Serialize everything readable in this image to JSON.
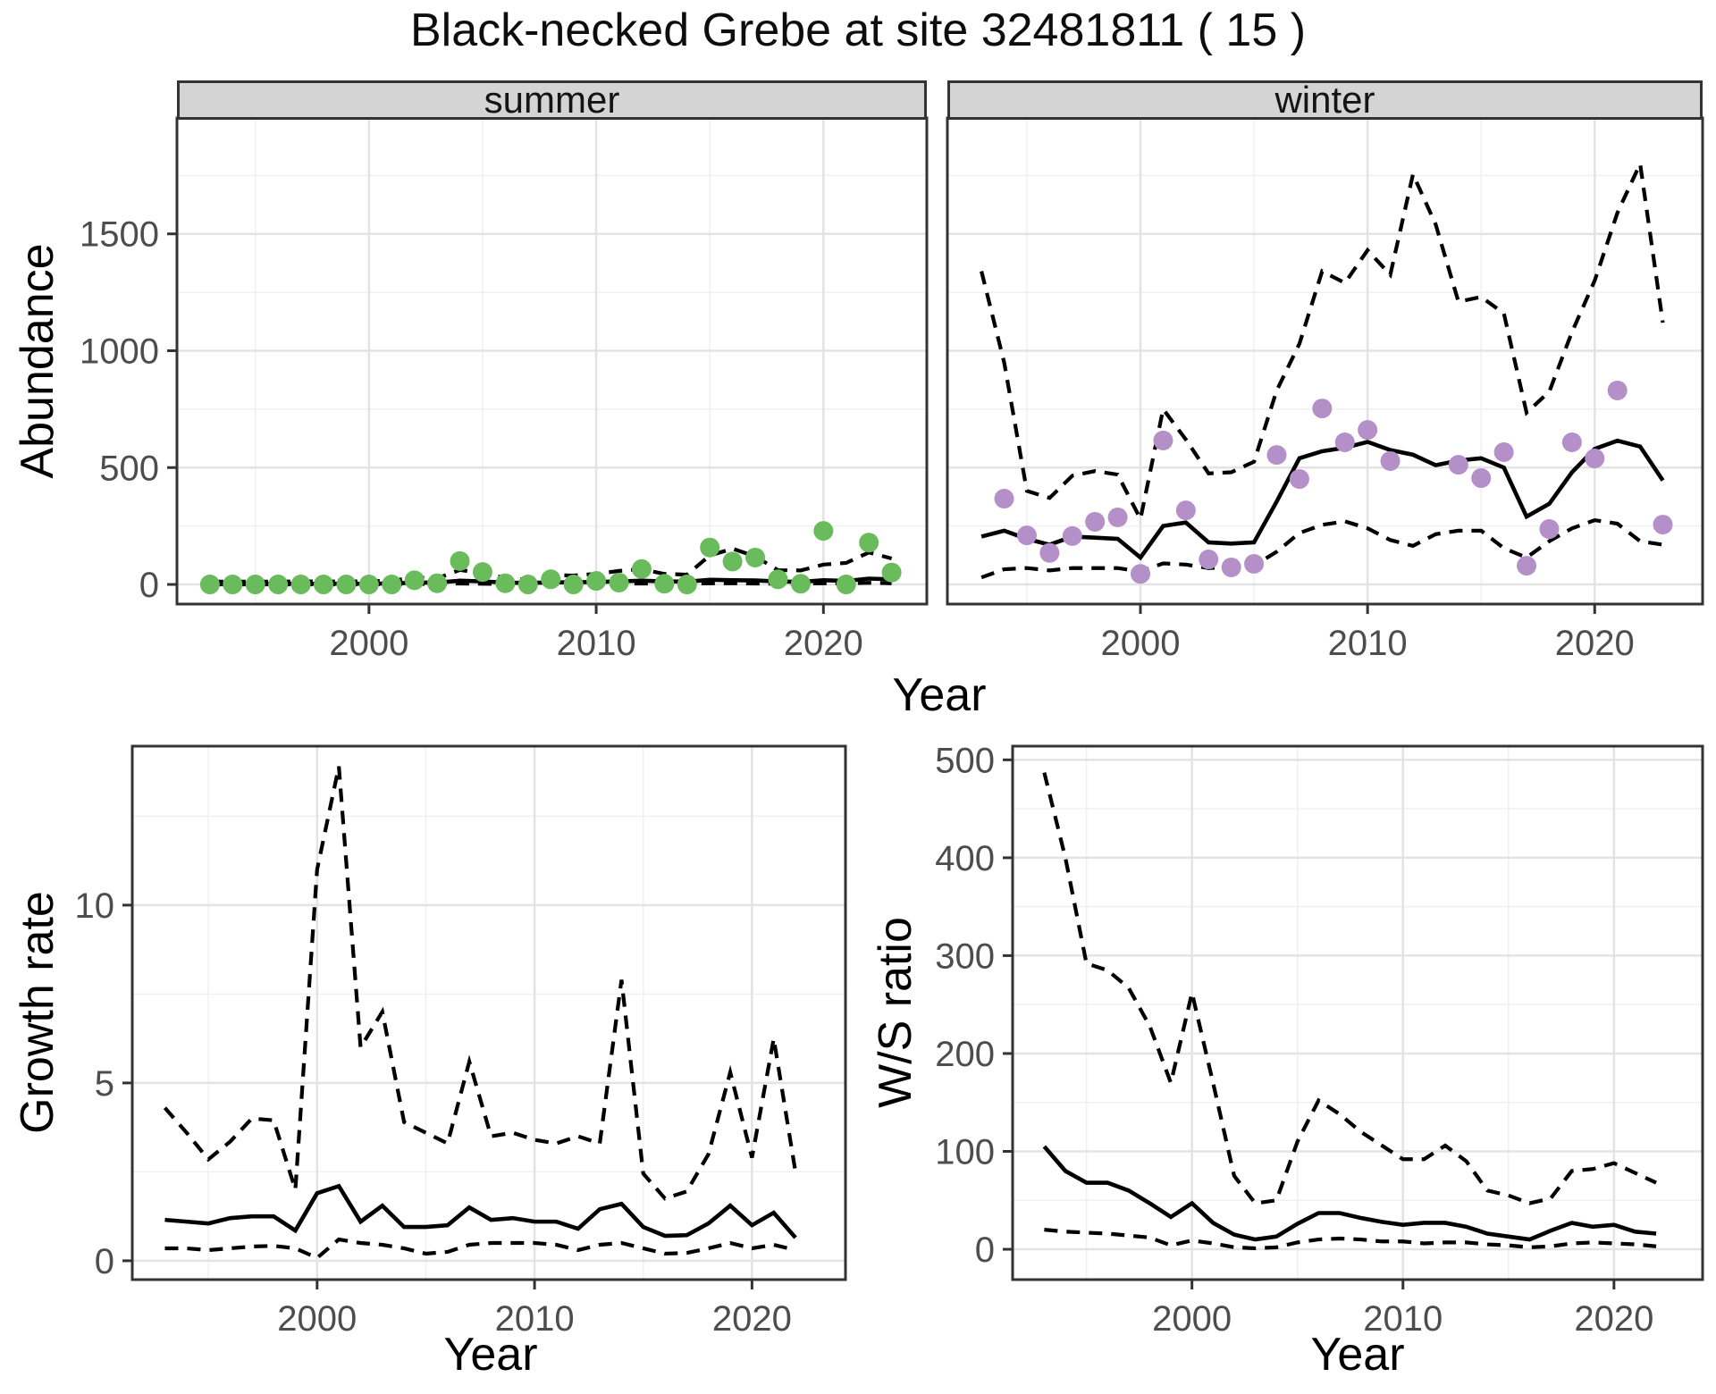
{
  "page": {
    "title": "Black-necked Grebe at site 32481811 ( 15 )"
  },
  "facets": {
    "summer_label": "summer",
    "winter_label": "winter"
  },
  "axes": {
    "abundance_label": "Abundance",
    "year_label_top": "Year",
    "growth_label": "Growth rate",
    "year_label_growth": "Year",
    "ws_label": "W/S ratio",
    "year_label_ws": "Year"
  },
  "colors": {
    "summer_point": "#6abb5b",
    "winter_point": "#b48fc8",
    "line": "#000000",
    "strip_bg": "#d4d4d4",
    "grid_major": "#e3e3e3",
    "grid_minor": "#f0f0f0",
    "panel_border": "#333333",
    "tick_label": "#4d4d4d"
  },
  "chart_data": [
    {
      "id": "summer",
      "type": "line",
      "facet_label": "summer",
      "xlabel": "Year",
      "ylabel": "Abundance",
      "xlim": [
        1991.55,
        2024.55
      ],
      "ylim": [
        -84,
        1996
      ],
      "xticks": [
        2000,
        2010,
        2020
      ],
      "xminor": [
        1995,
        2005,
        2015
      ],
      "yticks": [
        0,
        500,
        1000,
        1500
      ],
      "yminor": [
        250,
        750,
        1250,
        1750
      ],
      "grid": true,
      "legend": "none",
      "point_color": "#6abb5b",
      "x": [
        1993,
        1994,
        1995,
        1996,
        1997,
        1998,
        1999,
        2000,
        2001,
        2002,
        2003,
        2004,
        2005,
        2006,
        2007,
        2008,
        2009,
        2010,
        2011,
        2012,
        2013,
        2014,
        2015,
        2016,
        2017,
        2018,
        2019,
        2020,
        2021,
        2022,
        2023
      ],
      "series": [
        {
          "name": "observed",
          "style": "points",
          "values": [
            0,
            0,
            0,
            0,
            0,
            0,
            0,
            0,
            0,
            18,
            5,
            100,
            53,
            5,
            0,
            22,
            0,
            15,
            8,
            66,
            3,
            0,
            158,
            98,
            115,
            22,
            3,
            229,
            0,
            179,
            51
          ]
        },
        {
          "name": "fit",
          "style": "solid-line",
          "values": [
            3,
            3,
            3,
            3,
            3,
            3,
            3,
            3,
            4,
            8,
            8,
            16,
            13,
            8,
            6,
            9,
            9,
            11,
            13,
            16,
            13,
            12,
            20,
            18,
            17,
            13,
            11,
            18,
            15,
            25,
            22
          ]
        },
        {
          "name": "lower-ci",
          "style": "dashed-line",
          "values": [
            0,
            0,
            0,
            0,
            0,
            0,
            0,
            0,
            1,
            2,
            2,
            4,
            3,
            2,
            1,
            2,
            2,
            3,
            3,
            4,
            3,
            3,
            5,
            5,
            4,
            3,
            3,
            5,
            4,
            7,
            5
          ]
        },
        {
          "name": "upper-ci",
          "style": "dashed-line",
          "values": [
            12,
            12,
            12,
            12,
            13,
            13,
            12,
            14,
            16,
            30,
            26,
            62,
            48,
            28,
            20,
            40,
            38,
            45,
            58,
            65,
            45,
            42,
            124,
            153,
            120,
            61,
            60,
            85,
            92,
            137,
            111
          ]
        }
      ]
    },
    {
      "id": "winter",
      "type": "line",
      "facet_label": "winter",
      "xlabel": "Year",
      "ylabel": "Abundance",
      "xlim": [
        1991.5,
        2024.75
      ],
      "ylim": [
        -84,
        1996
      ],
      "xticks": [
        2000,
        2010,
        2020
      ],
      "xminor": [
        1995,
        2005,
        2015
      ],
      "yticks": [
        0,
        500,
        1000,
        1500
      ],
      "yminor": [
        250,
        750,
        1250,
        1750
      ],
      "grid": true,
      "legend": "none",
      "point_color": "#b48fc8",
      "x": [
        1993,
        1994,
        1995,
        1996,
        1997,
        1998,
        1999,
        2000,
        2001,
        2002,
        2003,
        2004,
        2005,
        2006,
        2007,
        2008,
        2009,
        2010,
        2011,
        2012,
        2013,
        2014,
        2015,
        2016,
        2017,
        2018,
        2019,
        2020,
        2021,
        2022,
        2023
      ],
      "series": [
        {
          "name": "observed",
          "style": "points",
          "values": [
            null,
            367,
            210,
            135,
            207,
            268,
            287,
            45,
            616,
            317,
            107,
            73,
            88,
            554,
            451,
            753,
            608,
            661,
            528,
            null,
            null,
            512,
            455,
            566,
            80,
            237,
            608,
            539,
            830,
            null,
            256
          ]
        },
        {
          "name": "fit",
          "style": "solid-line",
          "values": [
            205,
            230,
            195,
            170,
            205,
            200,
            195,
            115,
            250,
            265,
            180,
            175,
            180,
            355,
            540,
            570,
            585,
            610,
            575,
            555,
            510,
            530,
            540,
            500,
            290,
            345,
            480,
            580,
            615,
            590,
            445
          ]
        },
        {
          "name": "lower-ci",
          "style": "dashed-line",
          "values": [
            30,
            65,
            70,
            60,
            70,
            70,
            70,
            55,
            90,
            85,
            70,
            75,
            80,
            140,
            220,
            255,
            270,
            240,
            190,
            165,
            215,
            230,
            230,
            155,
            115,
            185,
            240,
            275,
            260,
            185,
            170
          ]
        },
        {
          "name": "upper-ci",
          "style": "dashed-line",
          "values": [
            1340,
            950,
            400,
            370,
            465,
            485,
            470,
            280,
            750,
            620,
            475,
            480,
            525,
            830,
            1030,
            1340,
            1290,
            1430,
            1325,
            1755,
            1540,
            1210,
            1230,
            1160,
            735,
            825,
            1080,
            1300,
            1590,
            1800,
            1120
          ]
        }
      ]
    },
    {
      "id": "growth",
      "type": "line",
      "facet_label": "",
      "xlabel": "Year",
      "ylabel": "Growth rate",
      "xlim": [
        1991.5,
        2024.3
      ],
      "ylim": [
        -0.53,
        14.47
      ],
      "xticks": [
        2000,
        2010,
        2020
      ],
      "xminor": [
        1995,
        2005,
        2015
      ],
      "yticks": [
        0,
        5,
        10
      ],
      "yminor": [
        2.5,
        7.5,
        12.5
      ],
      "grid": true,
      "legend": "none",
      "x": [
        1993,
        1994,
        1995,
        1996,
        1997,
        1998,
        1999,
        2000,
        2001,
        2002,
        2003,
        2004,
        2005,
        2006,
        2007,
        2008,
        2009,
        2010,
        2011,
        2012,
        2013,
        2014,
        2015,
        2016,
        2017,
        2018,
        2019,
        2020,
        2021,
        2022
      ],
      "series": [
        {
          "name": "fit",
          "style": "solid-line",
          "values": [
            1.15,
            1.1,
            1.05,
            1.2,
            1.25,
            1.25,
            0.85,
            1.9,
            2.1,
            1.1,
            1.55,
            0.95,
            0.95,
            1.0,
            1.5,
            1.15,
            1.2,
            1.1,
            1.1,
            0.9,
            1.45,
            1.6,
            0.95,
            0.7,
            0.72,
            1.05,
            1.55,
            1.0,
            1.35,
            0.65
          ]
        },
        {
          "name": "lower-ci",
          "style": "dashed-line",
          "values": [
            0.35,
            0.35,
            0.3,
            0.35,
            0.4,
            0.42,
            0.35,
            0.08,
            0.6,
            0.5,
            0.45,
            0.35,
            0.2,
            0.25,
            0.45,
            0.5,
            0.5,
            0.5,
            0.45,
            0.3,
            0.45,
            0.5,
            0.35,
            0.2,
            0.22,
            0.35,
            0.5,
            0.35,
            0.45,
            0.3
          ]
        },
        {
          "name": "upper-ci",
          "style": "dashed-line",
          "values": [
            4.3,
            3.6,
            2.85,
            3.35,
            4.0,
            3.95,
            2.0,
            11.0,
            13.9,
            6.0,
            7.0,
            3.9,
            3.6,
            3.3,
            5.6,
            3.5,
            3.6,
            3.4,
            3.3,
            3.5,
            3.3,
            7.9,
            2.45,
            1.75,
            1.95,
            3.0,
            5.3,
            2.9,
            6.25,
            2.5
          ]
        }
      ]
    },
    {
      "id": "ws",
      "type": "line",
      "facet_label": "",
      "xlabel": "Year",
      "ylabel": "W/S ratio",
      "xlim": [
        1991.5,
        2024.2
      ],
      "ylim": [
        -31,
        514
      ],
      "xticks": [
        2000,
        2010,
        2020
      ],
      "xminor": [
        1995,
        2005,
        2015
      ],
      "yticks": [
        0,
        100,
        200,
        300,
        400,
        500
      ],
      "yminor": [
        50,
        150,
        250,
        350,
        450
      ],
      "grid": true,
      "legend": "none",
      "x": [
        1993,
        1994,
        1995,
        1996,
        1997,
        1998,
        1999,
        2000,
        2001,
        2002,
        2003,
        2004,
        2005,
        2006,
        2007,
        2008,
        2009,
        2010,
        2011,
        2012,
        2013,
        2014,
        2015,
        2016,
        2017,
        2018,
        2019,
        2020,
        2021,
        2022
      ],
      "series": [
        {
          "name": "fit",
          "style": "solid-line",
          "values": [
            105,
            80,
            68,
            68,
            60,
            47,
            33,
            47,
            27,
            15,
            10,
            13,
            26,
            37,
            37,
            32,
            28,
            25,
            27,
            27,
            23,
            16,
            13,
            10,
            19,
            27,
            23,
            25,
            18,
            16
          ]
        },
        {
          "name": "lower-ci",
          "style": "dashed-line",
          "values": [
            20,
            18,
            17,
            16,
            14,
            12,
            4,
            9,
            6,
            2,
            1,
            2,
            7,
            10,
            11,
            10,
            8,
            8,
            6,
            7,
            7,
            5,
            4,
            2,
            3,
            6,
            7,
            6,
            5,
            3
          ]
        },
        {
          "name": "upper-ci",
          "style": "dashed-line",
          "values": [
            487,
            400,
            292,
            285,
            267,
            228,
            170,
            262,
            170,
            75,
            47,
            50,
            110,
            152,
            138,
            120,
            106,
            92,
            92,
            106,
            90,
            60,
            55,
            47,
            52,
            80,
            82,
            88,
            78,
            68
          ]
        }
      ]
    }
  ]
}
